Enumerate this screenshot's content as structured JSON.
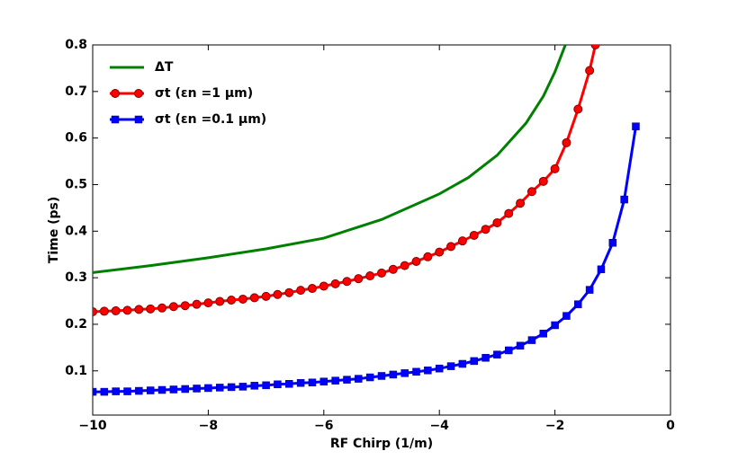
{
  "chart_data": {
    "type": "line",
    "xlabel": "RF Chirp (1/m)",
    "ylabel": "Time (ps)",
    "xlim": [
      -10,
      0
    ],
    "ylim": [
      0.005,
      0.8
    ],
    "xticks": [
      {
        "value": -10,
        "label": "−10"
      },
      {
        "value": -8,
        "label": "−8"
      },
      {
        "value": -6,
        "label": "−6"
      },
      {
        "value": -4,
        "label": "−4"
      },
      {
        "value": -2,
        "label": "−2"
      },
      0
    ],
    "yticks": [
      0.1,
      0.2,
      0.3,
      0.4,
      0.5,
      0.6,
      0.7,
      0.8
    ],
    "legend": "upper left",
    "series": [
      {
        "name": "ΔT",
        "color": "#008000",
        "marker": "none",
        "x": [
          -10,
          -9,
          -8,
          -7,
          -6,
          -5,
          -4,
          -3.5,
          -3,
          -2.5,
          -2.2,
          -2,
          -1.82
        ],
        "values": [
          0.311,
          0.326,
          0.343,
          0.362,
          0.385,
          0.425,
          0.48,
          0.515,
          0.563,
          0.632,
          0.69,
          0.742,
          0.8
        ]
      },
      {
        "name": "σt  (εn =1 μm)",
        "color": "#ff0000",
        "marker": "circle",
        "x": [
          -10,
          -9.8,
          -9.6,
          -9.4,
          -9.2,
          -9.0,
          -8.8,
          -8.6,
          -8.4,
          -8.2,
          -8.0,
          -7.8,
          -7.6,
          -7.4,
          -7.2,
          -7.0,
          -6.8,
          -6.6,
          -6.4,
          -6.2,
          -6.0,
          -5.8,
          -5.6,
          -5.4,
          -5.2,
          -5.0,
          -4.8,
          -4.6,
          -4.4,
          -4.2,
          -4.0,
          -3.8,
          -3.6,
          -3.4,
          -3.2,
          -3.0,
          -2.8,
          -2.6,
          -2.4,
          -2.2,
          -2.0,
          -1.8,
          -1.6,
          -1.4,
          -1.3
        ],
        "values": [
          0.227,
          0.228,
          0.229,
          0.23,
          0.232,
          0.233,
          0.235,
          0.238,
          0.24,
          0.243,
          0.246,
          0.249,
          0.252,
          0.254,
          0.257,
          0.26,
          0.264,
          0.268,
          0.273,
          0.277,
          0.282,
          0.287,
          0.292,
          0.298,
          0.304,
          0.31,
          0.318,
          0.326,
          0.335,
          0.345,
          0.355,
          0.367,
          0.379,
          0.391,
          0.404,
          0.418,
          0.438,
          0.46,
          0.485,
          0.507,
          0.534,
          0.59,
          0.662,
          0.745,
          0.8
        ]
      },
      {
        "name": "σt (εn =0.1 μm)",
        "color": "#0000ff",
        "marker": "square",
        "x": [
          -10,
          -9.8,
          -9.6,
          -9.4,
          -9.2,
          -9.0,
          -8.8,
          -8.6,
          -8.4,
          -8.2,
          -8.0,
          -7.8,
          -7.6,
          -7.4,
          -7.2,
          -7.0,
          -6.8,
          -6.6,
          -6.4,
          -6.2,
          -6.0,
          -5.8,
          -5.6,
          -5.4,
          -5.2,
          -5.0,
          -4.8,
          -4.6,
          -4.4,
          -4.2,
          -4.0,
          -3.8,
          -3.6,
          -3.4,
          -3.2,
          -3.0,
          -2.8,
          -2.6,
          -2.4,
          -2.2,
          -2.0,
          -1.8,
          -1.6,
          -1.4,
          -1.2,
          -1.0,
          -0.8,
          -0.6
        ],
        "values": [
          0.055,
          0.055,
          0.056,
          0.056,
          0.057,
          0.058,
          0.059,
          0.06,
          0.061,
          0.062,
          0.063,
          0.064,
          0.065,
          0.066,
          0.068,
          0.069,
          0.071,
          0.072,
          0.074,
          0.075,
          0.077,
          0.079,
          0.081,
          0.083,
          0.086,
          0.089,
          0.092,
          0.095,
          0.098,
          0.101,
          0.105,
          0.11,
          0.115,
          0.121,
          0.128,
          0.135,
          0.144,
          0.154,
          0.166,
          0.18,
          0.198,
          0.218,
          0.243,
          0.274,
          0.318,
          0.375,
          0.468,
          0.625
        ]
      }
    ]
  }
}
